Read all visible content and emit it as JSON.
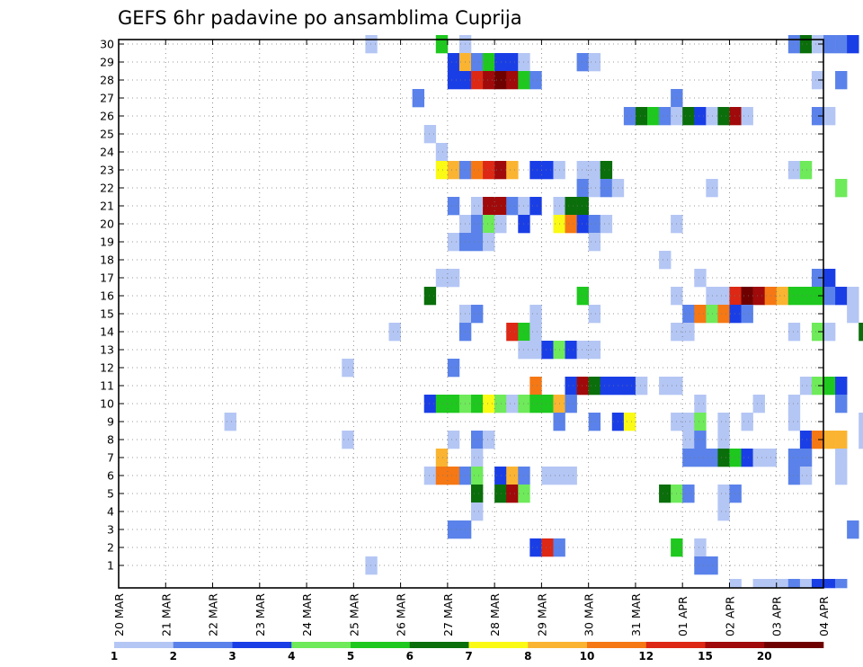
{
  "chart_data": {
    "type": "heatmap",
    "title": "GEFS 6hr padavine po ansamblima Cuprija",
    "xlabel": "",
    "ylabel": "",
    "x_tick_labels": [
      "20 MAR",
      "21 MAR",
      "22 MAR",
      "23 MAR",
      "24 MAR",
      "25 MAR",
      "26 MAR",
      "27 MAR",
      "28 MAR",
      "29 MAR",
      "30 MAR",
      "31 MAR",
      "01 APR",
      "02 APR",
      "03 APR",
      "04 APR"
    ],
    "y_tick_labels": [
      "1",
      "2",
      "3",
      "4",
      "5",
      "6",
      "7",
      "8",
      "9",
      "10",
      "11",
      "12",
      "13",
      "14",
      "15",
      "16",
      "17",
      "18",
      "19",
      "20",
      "21",
      "22",
      "23",
      "24",
      "25",
      "26",
      "27",
      "28",
      "29",
      "30"
    ],
    "grid": true,
    "colorbar": {
      "labels": [
        "1",
        "2",
        "3",
        "4",
        "5",
        "6",
        "7",
        "8",
        "10",
        "12",
        "15",
        "20"
      ],
      "colors": [
        "#b4c6f4",
        "#5a82ea",
        "#1a3ee6",
        "#6eea5a",
        "#1ec81e",
        "#0a6e0a",
        "#fafa14",
        "#fab432",
        "#f57814",
        "#dc2814",
        "#a00a0a",
        "#6e0000"
      ]
    },
    "cells": [
      {
        "m": 30,
        "d": 5.25,
        "c": 0
      },
      {
        "m": 30,
        "d": 6.75,
        "c": 4
      },
      {
        "m": 30,
        "d": 7.25,
        "c": 0
      },
      {
        "m": 30,
        "d": 14.25,
        "c": 1
      },
      {
        "m": 30,
        "d": 14.5,
        "c": 5
      },
      {
        "m": 30,
        "d": 14.75,
        "c": 0
      },
      {
        "m": 30,
        "d": 15.0,
        "c": 1
      },
      {
        "m": 30,
        "d": 15.25,
        "c": 1
      },
      {
        "m": 30,
        "d": 15.5,
        "c": 2
      },
      {
        "m": 29,
        "d": 7.0,
        "c": 2
      },
      {
        "m": 29,
        "d": 7.25,
        "c": 7
      },
      {
        "m": 29,
        "d": 7.5,
        "c": 1
      },
      {
        "m": 29,
        "d": 7.75,
        "c": 4
      },
      {
        "m": 29,
        "d": 8.0,
        "c": 2
      },
      {
        "m": 29,
        "d": 8.25,
        "c": 2
      },
      {
        "m": 29,
        "d": 8.5,
        "c": 0
      },
      {
        "m": 29,
        "d": 9.75,
        "c": 1
      },
      {
        "m": 29,
        "d": 10.0,
        "c": 0
      },
      {
        "m": 28,
        "d": 7.0,
        "c": 2
      },
      {
        "m": 28,
        "d": 7.25,
        "c": 2
      },
      {
        "m": 28,
        "d": 7.5,
        "c": 9
      },
      {
        "m": 28,
        "d": 7.75,
        "c": 10
      },
      {
        "m": 28,
        "d": 8.0,
        "c": 11
      },
      {
        "m": 28,
        "d": 8.25,
        "c": 10
      },
      {
        "m": 28,
        "d": 8.5,
        "c": 4
      },
      {
        "m": 28,
        "d": 8.75,
        "c": 1
      },
      {
        "m": 28,
        "d": 14.75,
        "c": 0
      },
      {
        "m": 28,
        "d": 15.25,
        "c": 1
      },
      {
        "m": 27,
        "d": 6.25,
        "c": 1
      },
      {
        "m": 27,
        "d": 11.75,
        "c": 1
      },
      {
        "m": 26,
        "d": 10.75,
        "c": 1
      },
      {
        "m": 26,
        "d": 11.0,
        "c": 5
      },
      {
        "m": 26,
        "d": 11.25,
        "c": 4
      },
      {
        "m": 26,
        "d": 11.5,
        "c": 1
      },
      {
        "m": 26,
        "d": 11.75,
        "c": 0
      },
      {
        "m": 26,
        "d": 12.0,
        "c": 5
      },
      {
        "m": 26,
        "d": 12.25,
        "c": 2
      },
      {
        "m": 26,
        "d": 12.5,
        "c": 0
      },
      {
        "m": 26,
        "d": 12.75,
        "c": 5
      },
      {
        "m": 26,
        "d": 13.0,
        "c": 10
      },
      {
        "m": 26,
        "d": 13.25,
        "c": 0
      },
      {
        "m": 26,
        "d": 14.75,
        "c": 1
      },
      {
        "m": 26,
        "d": 15.0,
        "c": 0
      },
      {
        "m": 25,
        "d": 6.5,
        "c": 0
      },
      {
        "m": 24,
        "d": 6.75,
        "c": 0
      },
      {
        "m": 23,
        "d": 6.75,
        "c": 6
      },
      {
        "m": 23,
        "d": 7.0,
        "c": 7
      },
      {
        "m": 23,
        "d": 7.25,
        "c": 1
      },
      {
        "m": 23,
        "d": 7.5,
        "c": 8
      },
      {
        "m": 23,
        "d": 7.75,
        "c": 9
      },
      {
        "m": 23,
        "d": 8.0,
        "c": 10
      },
      {
        "m": 23,
        "d": 8.25,
        "c": 7
      },
      {
        "m": 23,
        "d": 8.75,
        "c": 2
      },
      {
        "m": 23,
        "d": 9.0,
        "c": 2
      },
      {
        "m": 23,
        "d": 9.25,
        "c": 0
      },
      {
        "m": 23,
        "d": 9.75,
        "c": 0
      },
      {
        "m": 23,
        "d": 10.0,
        "c": 0
      },
      {
        "m": 23,
        "d": 10.25,
        "c": 5
      },
      {
        "m": 23,
        "d": 14.25,
        "c": 0
      },
      {
        "m": 23,
        "d": 14.5,
        "c": 3
      },
      {
        "m": 22,
        "d": 9.75,
        "c": 1
      },
      {
        "m": 22,
        "d": 10.0,
        "c": 0
      },
      {
        "m": 22,
        "d": 10.25,
        "c": 1
      },
      {
        "m": 22,
        "d": 10.5,
        "c": 0
      },
      {
        "m": 22,
        "d": 12.5,
        "c": 0
      },
      {
        "m": 22,
        "d": 15.25,
        "c": 3
      },
      {
        "m": 21,
        "d": 7.0,
        "c": 1
      },
      {
        "m": 21,
        "d": 7.5,
        "c": 0
      },
      {
        "m": 21,
        "d": 7.75,
        "c": 10
      },
      {
        "m": 21,
        "d": 8.0,
        "c": 10
      },
      {
        "m": 21,
        "d": 8.25,
        "c": 1
      },
      {
        "m": 21,
        "d": 8.5,
        "c": 0
      },
      {
        "m": 21,
        "d": 8.75,
        "c": 2
      },
      {
        "m": 21,
        "d": 9.25,
        "c": 0
      },
      {
        "m": 21,
        "d": 9.5,
        "c": 5
      },
      {
        "m": 21,
        "d": 9.75,
        "c": 5
      },
      {
        "m": 20,
        "d": 7.25,
        "c": 0
      },
      {
        "m": 20,
        "d": 7.5,
        "c": 1
      },
      {
        "m": 20,
        "d": 7.75,
        "c": 3
      },
      {
        "m": 20,
        "d": 8.0,
        "c": 0
      },
      {
        "m": 20,
        "d": 8.5,
        "c": 2
      },
      {
        "m": 20,
        "d": 9.25,
        "c": 6
      },
      {
        "m": 20,
        "d": 9.5,
        "c": 8
      },
      {
        "m": 20,
        "d": 9.75,
        "c": 2
      },
      {
        "m": 20,
        "d": 10.0,
        "c": 1
      },
      {
        "m": 20,
        "d": 10.25,
        "c": 0
      },
      {
        "m": 20,
        "d": 11.75,
        "c": 0
      },
      {
        "m": 19,
        "d": 7.0,
        "c": 0
      },
      {
        "m": 19,
        "d": 7.25,
        "c": 1
      },
      {
        "m": 19,
        "d": 7.5,
        "c": 1
      },
      {
        "m": 19,
        "d": 7.75,
        "c": 0
      },
      {
        "m": 19,
        "d": 10.0,
        "c": 0
      },
      {
        "m": 18,
        "d": 11.5,
        "c": 0
      },
      {
        "m": 17,
        "d": 6.75,
        "c": 0
      },
      {
        "m": 17,
        "d": 7.0,
        "c": 0
      },
      {
        "m": 17,
        "d": 12.25,
        "c": 0
      },
      {
        "m": 17,
        "d": 14.75,
        "c": 1
      },
      {
        "m": 17,
        "d": 15.0,
        "c": 2
      },
      {
        "m": 16,
        "d": 6.5,
        "c": 5
      },
      {
        "m": 16,
        "d": 9.75,
        "c": 4
      },
      {
        "m": 16,
        "d": 11.75,
        "c": 0
      },
      {
        "m": 16,
        "d": 12.5,
        "c": 0
      },
      {
        "m": 16,
        "d": 12.75,
        "c": 0
      },
      {
        "m": 16,
        "d": 13.0,
        "c": 9
      },
      {
        "m": 16,
        "d": 13.25,
        "c": 11
      },
      {
        "m": 16,
        "d": 13.5,
        "c": 10
      },
      {
        "m": 16,
        "d": 13.75,
        "c": 8
      },
      {
        "m": 16,
        "d": 14.0,
        "c": 7
      },
      {
        "m": 16,
        "d": 14.25,
        "c": 4
      },
      {
        "m": 16,
        "d": 14.5,
        "c": 4
      },
      {
        "m": 16,
        "d": 14.75,
        "c": 4
      },
      {
        "m": 16,
        "d": 15.0,
        "c": 1
      },
      {
        "m": 16,
        "d": 15.25,
        "c": 2
      },
      {
        "m": 16,
        "d": 15.5,
        "c": 0
      },
      {
        "m": 15,
        "d": 7.25,
        "c": 0
      },
      {
        "m": 15,
        "d": 7.5,
        "c": 1
      },
      {
        "m": 15,
        "d": 8.75,
        "c": 0
      },
      {
        "m": 15,
        "d": 10.0,
        "c": 0
      },
      {
        "m": 15,
        "d": 12.0,
        "c": 1
      },
      {
        "m": 15,
        "d": 12.25,
        "c": 8
      },
      {
        "m": 15,
        "d": 12.5,
        "c": 3
      },
      {
        "m": 15,
        "d": 12.75,
        "c": 8
      },
      {
        "m": 15,
        "d": 13.0,
        "c": 2
      },
      {
        "m": 15,
        "d": 13.25,
        "c": 1
      },
      {
        "m": 15,
        "d": 15.5,
        "c": 0
      },
      {
        "m": 14,
        "d": 5.75,
        "c": 0
      },
      {
        "m": 14,
        "d": 7.25,
        "c": 1
      },
      {
        "m": 14,
        "d": 8.25,
        "c": 9
      },
      {
        "m": 14,
        "d": 8.5,
        "c": 4
      },
      {
        "m": 14,
        "d": 8.75,
        "c": 0
      },
      {
        "m": 14,
        "d": 11.75,
        "c": 0
      },
      {
        "m": 14,
        "d": 12.0,
        "c": 0
      },
      {
        "m": 14,
        "d": 14.25,
        "c": 0
      },
      {
        "m": 14,
        "d": 14.75,
        "c": 3
      },
      {
        "m": 14,
        "d": 15.0,
        "c": 0
      },
      {
        "m": 14,
        "d": 15.75,
        "c": 5
      },
      {
        "m": 13,
        "d": 8.5,
        "c": 0
      },
      {
        "m": 13,
        "d": 8.75,
        "c": 0
      },
      {
        "m": 13,
        "d": 9.0,
        "c": 2
      },
      {
        "m": 13,
        "d": 9.25,
        "c": 3
      },
      {
        "m": 13,
        "d": 9.5,
        "c": 2
      },
      {
        "m": 13,
        "d": 9.75,
        "c": 0
      },
      {
        "m": 13,
        "d": 10.0,
        "c": 0
      },
      {
        "m": 12,
        "d": 4.75,
        "c": 0
      },
      {
        "m": 12,
        "d": 7.0,
        "c": 1
      },
      {
        "m": 11,
        "d": 8.75,
        "c": 8
      },
      {
        "m": 11,
        "d": 9.5,
        "c": 2
      },
      {
        "m": 11,
        "d": 9.75,
        "c": 10
      },
      {
        "m": 11,
        "d": 10.0,
        "c": 5
      },
      {
        "m": 11,
        "d": 10.25,
        "c": 2
      },
      {
        "m": 11,
        "d": 10.5,
        "c": 2
      },
      {
        "m": 11,
        "d": 10.75,
        "c": 2
      },
      {
        "m": 11,
        "d": 11.0,
        "c": 0
      },
      {
        "m": 11,
        "d": 11.5,
        "c": 0
      },
      {
        "m": 11,
        "d": 11.75,
        "c": 0
      },
      {
        "m": 11,
        "d": 14.5,
        "c": 0
      },
      {
        "m": 11,
        "d": 14.75,
        "c": 3
      },
      {
        "m": 11,
        "d": 15.0,
        "c": 4
      },
      {
        "m": 11,
        "d": 15.25,
        "c": 2
      },
      {
        "m": 10,
        "d": 6.5,
        "c": 2
      },
      {
        "m": 10,
        "d": 6.75,
        "c": 4
      },
      {
        "m": 10,
        "d": 7.0,
        "c": 4
      },
      {
        "m": 10,
        "d": 7.25,
        "c": 3
      },
      {
        "m": 10,
        "d": 7.5,
        "c": 4
      },
      {
        "m": 10,
        "d": 7.75,
        "c": 6
      },
      {
        "m": 10,
        "d": 8.0,
        "c": 3
      },
      {
        "m": 10,
        "d": 8.25,
        "c": 0
      },
      {
        "m": 10,
        "d": 8.5,
        "c": 3
      },
      {
        "m": 10,
        "d": 8.75,
        "c": 4
      },
      {
        "m": 10,
        "d": 9.0,
        "c": 4
      },
      {
        "m": 10,
        "d": 9.25,
        "c": 7
      },
      {
        "m": 10,
        "d": 9.5,
        "c": 1
      },
      {
        "m": 10,
        "d": 12.25,
        "c": 0
      },
      {
        "m": 10,
        "d": 13.5,
        "c": 0
      },
      {
        "m": 10,
        "d": 14.25,
        "c": 0
      },
      {
        "m": 10,
        "d": 15.25,
        "c": 1
      },
      {
        "m": 9,
        "d": 2.25,
        "c": 0
      },
      {
        "m": 9,
        "d": 9.25,
        "c": 1
      },
      {
        "m": 9,
        "d": 10.0,
        "c": 1
      },
      {
        "m": 9,
        "d": 10.5,
        "c": 2
      },
      {
        "m": 9,
        "d": 10.75,
        "c": 6
      },
      {
        "m": 9,
        "d": 11.75,
        "c": 0
      },
      {
        "m": 9,
        "d": 12.0,
        "c": 0
      },
      {
        "m": 9,
        "d": 12.25,
        "c": 3
      },
      {
        "m": 9,
        "d": 12.75,
        "c": 0
      },
      {
        "m": 9,
        "d": 13.25,
        "c": 0
      },
      {
        "m": 9,
        "d": 14.25,
        "c": 0
      },
      {
        "m": 9,
        "d": 15.75,
        "c": 0
      },
      {
        "m": 8,
        "d": 4.75,
        "c": 0
      },
      {
        "m": 8,
        "d": 7.0,
        "c": 0
      },
      {
        "m": 8,
        "d": 7.5,
        "c": 1
      },
      {
        "m": 8,
        "d": 7.75,
        "c": 0
      },
      {
        "m": 8,
        "d": 12.0,
        "c": 0
      },
      {
        "m": 8,
        "d": 12.25,
        "c": 1
      },
      {
        "m": 8,
        "d": 12.75,
        "c": 0
      },
      {
        "m": 8,
        "d": 14.5,
        "c": 2
      },
      {
        "m": 8,
        "d": 14.75,
        "c": 8
      },
      {
        "m": 8,
        "d": 15.0,
        "c": 7
      },
      {
        "m": 8,
        "d": 15.25,
        "c": 7
      },
      {
        "m": 8,
        "d": 15.75,
        "c": 0
      },
      {
        "m": 7,
        "d": 6.75,
        "c": 7
      },
      {
        "m": 7,
        "d": 7.5,
        "c": 0
      },
      {
        "m": 7,
        "d": 12.0,
        "c": 1
      },
      {
        "m": 7,
        "d": 12.25,
        "c": 1
      },
      {
        "m": 7,
        "d": 12.5,
        "c": 1
      },
      {
        "m": 7,
        "d": 12.75,
        "c": 5
      },
      {
        "m": 7,
        "d": 13.0,
        "c": 4
      },
      {
        "m": 7,
        "d": 13.25,
        "c": 2
      },
      {
        "m": 7,
        "d": 13.5,
        "c": 0
      },
      {
        "m": 7,
        "d": 13.75,
        "c": 0
      },
      {
        "m": 7,
        "d": 14.25,
        "c": 1
      },
      {
        "m": 7,
        "d": 14.5,
        "c": 1
      },
      {
        "m": 7,
        "d": 15.25,
        "c": 0
      },
      {
        "m": 6,
        "d": 6.5,
        "c": 0
      },
      {
        "m": 6,
        "d": 6.75,
        "c": 8
      },
      {
        "m": 6,
        "d": 7.0,
        "c": 8
      },
      {
        "m": 6,
        "d": 7.25,
        "c": 1
      },
      {
        "m": 6,
        "d": 7.5,
        "c": 3
      },
      {
        "m": 6,
        "d": 8.0,
        "c": 2
      },
      {
        "m": 6,
        "d": 8.25,
        "c": 7
      },
      {
        "m": 6,
        "d": 8.5,
        "c": 1
      },
      {
        "m": 6,
        "d": 9.0,
        "c": 0
      },
      {
        "m": 6,
        "d": 9.25,
        "c": 0
      },
      {
        "m": 6,
        "d": 9.5,
        "c": 0
      },
      {
        "m": 6,
        "d": 14.25,
        "c": 1
      },
      {
        "m": 6,
        "d": 14.5,
        "c": 0
      },
      {
        "m": 6,
        "d": 15.25,
        "c": 0
      },
      {
        "m": 5,
        "d": 7.5,
        "c": 5
      },
      {
        "m": 5,
        "d": 8.0,
        "c": 5
      },
      {
        "m": 5,
        "d": 8.25,
        "c": 10
      },
      {
        "m": 5,
        "d": 8.5,
        "c": 3
      },
      {
        "m": 5,
        "d": 11.5,
        "c": 5
      },
      {
        "m": 5,
        "d": 11.75,
        "c": 3
      },
      {
        "m": 5,
        "d": 12.0,
        "c": 1
      },
      {
        "m": 5,
        "d": 12.75,
        "c": 0
      },
      {
        "m": 5,
        "d": 13.0,
        "c": 1
      },
      {
        "m": 4,
        "d": 7.5,
        "c": 0
      },
      {
        "m": 4,
        "d": 12.75,
        "c": 0
      },
      {
        "m": 3,
        "d": 7.0,
        "c": 1
      },
      {
        "m": 3,
        "d": 7.25,
        "c": 1
      },
      {
        "m": 3,
        "d": 15.5,
        "c": 1
      },
      {
        "m": 2,
        "d": 8.75,
        "c": 2
      },
      {
        "m": 2,
        "d": 9.0,
        "c": 9
      },
      {
        "m": 2,
        "d": 9.25,
        "c": 1
      },
      {
        "m": 2,
        "d": 11.75,
        "c": 4
      },
      {
        "m": 2,
        "d": 12.25,
        "c": 0
      },
      {
        "m": 1,
        "d": 5.25,
        "c": 0
      },
      {
        "m": 1,
        "d": 12.25,
        "c": 1
      },
      {
        "m": 1,
        "d": 12.5,
        "c": 1
      },
      {
        "m": 0,
        "d": 13.0,
        "c": 0
      },
      {
        "m": 0,
        "d": 13.5,
        "c": 0
      },
      {
        "m": 0,
        "d": 13.75,
        "c": 0
      },
      {
        "m": 0,
        "d": 14.0,
        "c": 0
      },
      {
        "m": 0,
        "d": 14.25,
        "c": 1
      },
      {
        "m": 0,
        "d": 14.5,
        "c": 0
      },
      {
        "m": 0,
        "d": 14.75,
        "c": 2
      },
      {
        "m": 0,
        "d": 15.0,
        "c": 2
      },
      {
        "m": 0,
        "d": 15.25,
        "c": 1
      }
    ]
  }
}
